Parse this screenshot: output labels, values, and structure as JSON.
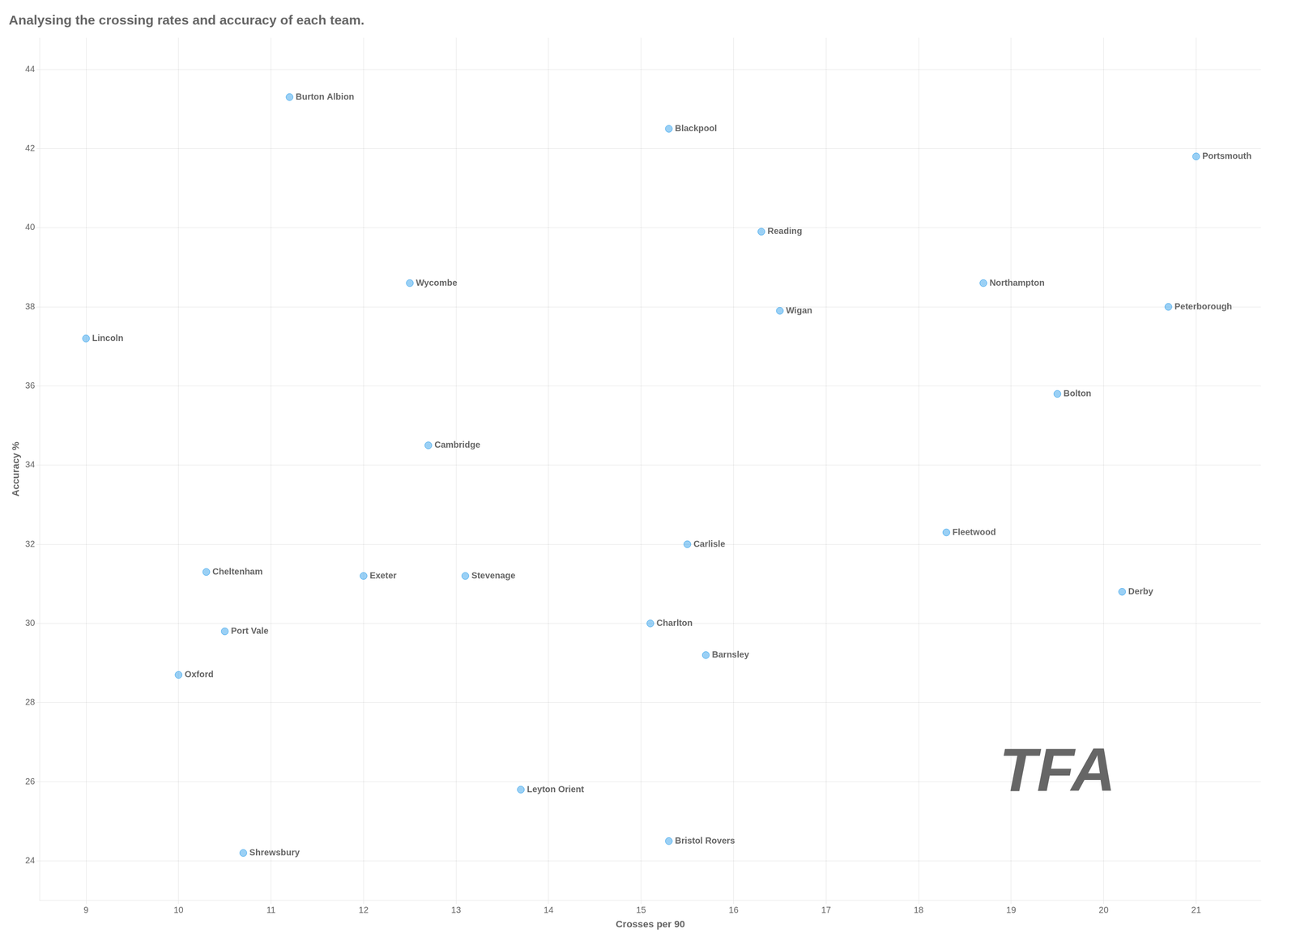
{
  "chart_data": {
    "type": "scatter",
    "title": "Analysing the crossing rates and accuracy of each team.",
    "xlabel": "Crosses per 90",
    "ylabel": "Accuracy %",
    "x": [
      9.0,
      11.2,
      12.5,
      15.3,
      21.0,
      16.3,
      18.7,
      16.5,
      20.7,
      19.5,
      12.7,
      10.3,
      12.0,
      13.1,
      15.5,
      18.3,
      20.2,
      10.5,
      10.0,
      15.1,
      15.7,
      13.7,
      10.7,
      15.3
    ],
    "values": [
      37.2,
      43.3,
      38.6,
      42.5,
      41.8,
      39.9,
      38.6,
      37.9,
      38.0,
      35.8,
      34.5,
      31.3,
      31.2,
      31.2,
      32.0,
      32.3,
      30.8,
      29.8,
      28.7,
      30.0,
      29.2,
      25.8,
      24.2,
      24.5
    ],
    "point_labels": [
      "Lincoln",
      "Burton Albion",
      "Wycombe",
      "Blackpool",
      "Portsmouth",
      "Reading",
      "Northampton",
      "Wigan",
      "Peterborough",
      "Bolton",
      "Cambridge",
      "Cheltenham",
      "Exeter",
      "Stevenage",
      "Carlisle",
      "Fleetwood",
      "Derby",
      "Port Vale",
      "Oxford",
      "Charlton",
      "Barnsley",
      "Leyton Orient",
      "Shrewsbury",
      "Bristol Rovers"
    ],
    "annotations": [
      {
        "text": "TFA",
        "x": 19.5,
        "y": 26.2
      }
    ],
    "xlim": [
      8.5,
      21.7
    ],
    "ylim": [
      23.0,
      44.8
    ],
    "xticks": [
      9,
      10,
      11,
      12,
      13,
      14,
      15,
      16,
      17,
      18,
      19,
      20,
      21
    ],
    "yticks": [
      24,
      26,
      28,
      30,
      32,
      34,
      36,
      38,
      40,
      42,
      44
    ],
    "grid": true
  }
}
